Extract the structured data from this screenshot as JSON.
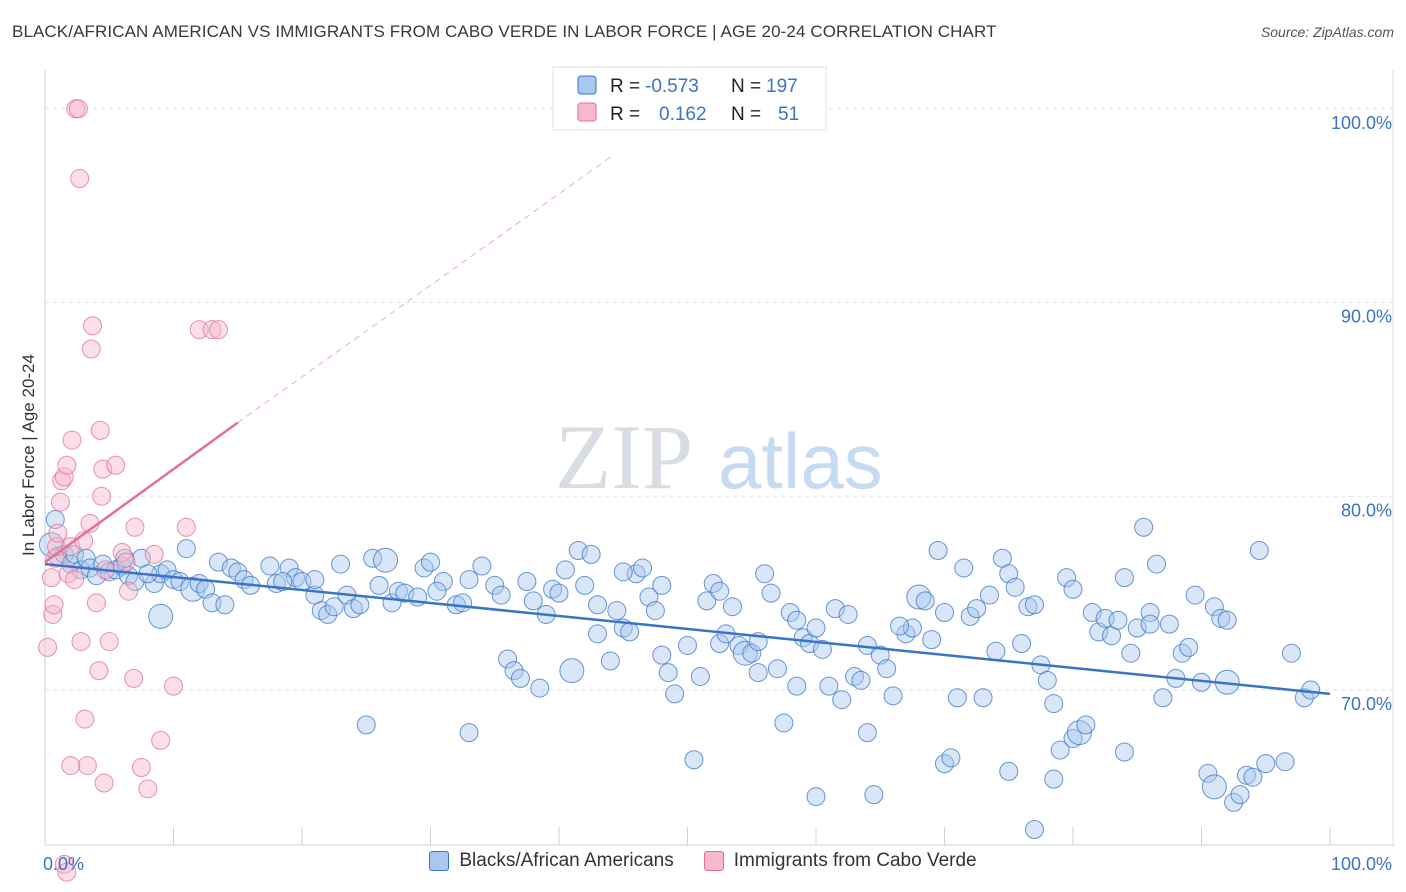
{
  "title": "BLACK/AFRICAN AMERICAN VS IMMIGRANTS FROM CABO VERDE IN LABOR FORCE | AGE 20-24 CORRELATION CHART",
  "source": "Source: ZipAtlas.com",
  "watermark": {
    "zip": "ZIP",
    "atlas": "atlas"
  },
  "colors": {
    "blue": "#3a74c4",
    "blue_fill": "#a9c8f0",
    "pink": "#e26f96",
    "pink_fill": "#f7b8cc",
    "grid": "#dde3ea"
  },
  "legend": {
    "series": [
      {
        "r_label": "R =",
        "r_value": "-0.573",
        "n_label": "N =",
        "n_value": "197",
        "color": "blue"
      },
      {
        "r_label": "R =",
        "r_value": "0.162",
        "n_label": "N =",
        "n_value": "51",
        "color": "pink"
      }
    ]
  },
  "bottom_legend": [
    "Blacks/African Americans",
    "Immigrants from Cabo Verde"
  ],
  "chart_data": {
    "type": "scatter",
    "xlabel": "",
    "ylabel": "In Labor Force | Age 20-24",
    "xlim": [
      0,
      100
    ],
    "ylim": [
      62,
      102
    ],
    "x_tick_labels": [
      "0.0%",
      "100.0%"
    ],
    "y_ticks": [
      70,
      80,
      90,
      100
    ],
    "y_tick_labels": [
      "70.0%",
      "80.0%",
      "90.0%",
      "100.0%"
    ],
    "grid": true,
    "legend_placement": "top-center",
    "series": [
      {
        "name": "Blacks/African Americans",
        "color": "blue",
        "trend": {
          "x": [
            0,
            100
          ],
          "y": [
            76.5,
            69.8
          ]
        },
        "points": [
          [
            0.5,
            77.5
          ],
          [
            0.8,
            78.8
          ],
          [
            1,
            76.9
          ],
          [
            1.5,
            77
          ],
          [
            2,
            76.5
          ],
          [
            2.3,
            77
          ],
          [
            2.8,
            76.2
          ],
          [
            3.2,
            76.8
          ],
          [
            3.5,
            76.3
          ],
          [
            4,
            75.9
          ],
          [
            4.5,
            76.5
          ],
          [
            5,
            76.1
          ],
          [
            5.5,
            76.2
          ],
          [
            6,
            76.4
          ],
          [
            6.5,
            75.9
          ],
          [
            7,
            75.6
          ],
          [
            7.5,
            76.8
          ],
          [
            8.5,
            75.5
          ],
          [
            9,
            76
          ],
          [
            9.5,
            76.2
          ],
          [
            10,
            75.7
          ],
          [
            10.5,
            75.6
          ],
          [
            11,
            77.3
          ],
          [
            11.5,
            75.2
          ],
          [
            12,
            75.5
          ],
          [
            12.5,
            75.2
          ],
          [
            13,
            74.5
          ],
          [
            13.5,
            76.6
          ],
          [
            14.5,
            76.3
          ],
          [
            15,
            76.1
          ],
          [
            15.5,
            75.7
          ],
          [
            16,
            75.4
          ],
          [
            17.5,
            76.4
          ],
          [
            18,
            75.5
          ],
          [
            19,
            76.3
          ],
          [
            19.5,
            75.8
          ],
          [
            20,
            75.6
          ],
          [
            21,
            74.9
          ],
          [
            21.5,
            74.1
          ],
          [
            22,
            73.9
          ],
          [
            22.5,
            74.3
          ],
          [
            23,
            76.5
          ],
          [
            23.5,
            74.9
          ],
          [
            24,
            74.2
          ],
          [
            24.5,
            74.4
          ],
          [
            25.5,
            76.8
          ],
          [
            26.5,
            76.7
          ],
          [
            27,
            74.5
          ],
          [
            27.5,
            75.1
          ],
          [
            28,
            75
          ],
          [
            29,
            74.8
          ],
          [
            29.5,
            76.3
          ],
          [
            30,
            76.6
          ],
          [
            31,
            75.6
          ],
          [
            32,
            74.4
          ],
          [
            32.5,
            74.5
          ],
          [
            33,
            75.7
          ],
          [
            34,
            76.4
          ],
          [
            35,
            75.4
          ],
          [
            35.5,
            74.9
          ],
          [
            36,
            71.6
          ],
          [
            36.5,
            71
          ],
          [
            37,
            70.6
          ],
          [
            38,
            74.6
          ],
          [
            38.5,
            70.1
          ],
          [
            39,
            73.9
          ],
          [
            39.5,
            75.2
          ],
          [
            40,
            75
          ],
          [
            40.5,
            76.2
          ],
          [
            41,
            71
          ],
          [
            41.5,
            77.2
          ],
          [
            42.5,
            77
          ],
          [
            43,
            74.4
          ],
          [
            44,
            71.5
          ],
          [
            44.5,
            74.1
          ],
          [
            45,
            73.2
          ],
          [
            45.5,
            73
          ],
          [
            46,
            76
          ],
          [
            46.5,
            76.3
          ],
          [
            47,
            74.8
          ],
          [
            47.5,
            74.1
          ],
          [
            48,
            71.8
          ],
          [
            48.5,
            70.9
          ],
          [
            49,
            69.8
          ],
          [
            50,
            72.3
          ],
          [
            51,
            70.7
          ],
          [
            51.5,
            74.6
          ],
          [
            52,
            75.5
          ],
          [
            52.5,
            72.4
          ],
          [
            53,
            72.9
          ],
          [
            53.5,
            74.3
          ],
          [
            54,
            72.3
          ],
          [
            54.5,
            71.9
          ],
          [
            55,
            71.9
          ],
          [
            55.5,
            72.5
          ],
          [
            56,
            76
          ],
          [
            56.5,
            75
          ],
          [
            57,
            71.1
          ],
          [
            57.5,
            68.3
          ],
          [
            58,
            74
          ],
          [
            59,
            72.7
          ],
          [
            59.5,
            72.4
          ],
          [
            60,
            73.2
          ],
          [
            60.5,
            72.1
          ],
          [
            61,
            70.2
          ],
          [
            61.5,
            74.2
          ],
          [
            62,
            69.5
          ],
          [
            63,
            70.7
          ],
          [
            63.5,
            70.5
          ],
          [
            64,
            72.3
          ],
          [
            65,
            71.8
          ],
          [
            65.5,
            71.1
          ],
          [
            66,
            69.7
          ],
          [
            67,
            72.9
          ],
          [
            67.5,
            73.2
          ],
          [
            68,
            74.8
          ],
          [
            68.5,
            74.6
          ],
          [
            69,
            72.6
          ],
          [
            69.5,
            77.2
          ],
          [
            70,
            74
          ],
          [
            71,
            69.6
          ],
          [
            71.5,
            76.3
          ],
          [
            72,
            73.8
          ],
          [
            72.5,
            74.2
          ],
          [
            73,
            69.6
          ],
          [
            74,
            72
          ],
          [
            74.5,
            76.8
          ],
          [
            75,
            76
          ],
          [
            75.5,
            75.3
          ],
          [
            76,
            72.4
          ],
          [
            76.5,
            74.3
          ],
          [
            77,
            74.4
          ],
          [
            77.5,
            71.3
          ],
          [
            78,
            70.5
          ],
          [
            78.5,
            69.3
          ],
          [
            79,
            66.9
          ],
          [
            79.5,
            75.8
          ],
          [
            80,
            67.5
          ],
          [
            80.5,
            67.8
          ],
          [
            81,
            68.2
          ],
          [
            81.5,
            74
          ],
          [
            82,
            73
          ],
          [
            82.5,
            73.7
          ],
          [
            83,
            72.8
          ],
          [
            83.5,
            73.6
          ],
          [
            84,
            75.8
          ],
          [
            84.5,
            71.9
          ],
          [
            85,
            73.2
          ],
          [
            85.5,
            78.4
          ],
          [
            86,
            74
          ],
          [
            86.5,
            76.5
          ],
          [
            87,
            69.6
          ],
          [
            87.5,
            73.4
          ],
          [
            88,
            70.6
          ],
          [
            88.5,
            71.9
          ],
          [
            89,
            72.2
          ],
          [
            89.5,
            74.9
          ],
          [
            90,
            70.4
          ],
          [
            90.5,
            65.7
          ],
          [
            91,
            74.3
          ],
          [
            91.5,
            73.7
          ],
          [
            92,
            70.4
          ],
          [
            92.5,
            64.2
          ],
          [
            93,
            64.6
          ],
          [
            93.5,
            65.6
          ],
          [
            94,
            65.5
          ],
          [
            94.5,
            77.2
          ],
          [
            95,
            66.2
          ],
          [
            98,
            69.6
          ],
          [
            98.5,
            70
          ],
          [
            14,
            74.4
          ],
          [
            25,
            68.2
          ],
          [
            33,
            67.8
          ],
          [
            43,
            72.9
          ],
          [
            50.5,
            66.4
          ],
          [
            60,
            64.5
          ],
          [
            64,
            67.8
          ],
          [
            64.5,
            64.6
          ],
          [
            70,
            66.2
          ],
          [
            70.5,
            66.5
          ],
          [
            75,
            65.8
          ],
          [
            77,
            62.8
          ],
          [
            78.5,
            65.4
          ],
          [
            84,
            66.8
          ],
          [
            91,
            65
          ],
          [
            96.5,
            66.3
          ],
          [
            6.2,
            76.8
          ],
          [
            8,
            76
          ],
          [
            18.5,
            75.6
          ],
          [
            26,
            75.4
          ],
          [
            30.5,
            75.1
          ],
          [
            37.5,
            75.6
          ],
          [
            42,
            75.4
          ],
          [
            45,
            76.1
          ],
          [
            48,
            75.4
          ],
          [
            52.5,
            75.1
          ],
          [
            58.5,
            73.6
          ],
          [
            62.5,
            73.9
          ],
          [
            66.5,
            73.3
          ],
          [
            73.5,
            74.9
          ],
          [
            80,
            75.2
          ],
          [
            86,
            73.4
          ],
          [
            92,
            73.6
          ],
          [
            97,
            71.9
          ],
          [
            55.5,
            70.9
          ],
          [
            58.5,
            70.2
          ],
          [
            21,
            75.7
          ],
          [
            9,
            73.8
          ]
        ]
      },
      {
        "name": "Immigrants from Cabo Verde",
        "color": "pink",
        "trend": {
          "x": [
            0,
            15
          ],
          "y": [
            76.6,
            83.8
          ]
        },
        "trend_ext": {
          "x": [
            15,
            44
          ],
          "y": [
            83.8,
            97.5
          ]
        },
        "points": [
          [
            0.2,
            72.2
          ],
          [
            0.5,
            75.8
          ],
          [
            0.6,
            73.9
          ],
          [
            0.7,
            74.4
          ],
          [
            0.8,
            76.8
          ],
          [
            0.9,
            77.4
          ],
          [
            1,
            78.1
          ],
          [
            1.2,
            79.7
          ],
          [
            1.3,
            80.8
          ],
          [
            1.5,
            81
          ],
          [
            1.7,
            81.6
          ],
          [
            1.8,
            76
          ],
          [
            2,
            77.4
          ],
          [
            2.1,
            82.9
          ],
          [
            2.3,
            75.7
          ],
          [
            2.4,
            100
          ],
          [
            2.6,
            100
          ],
          [
            2.7,
            96.4
          ],
          [
            2.8,
            72.5
          ],
          [
            3,
            77.7
          ],
          [
            3.1,
            68.5
          ],
          [
            3.3,
            66.1
          ],
          [
            3.5,
            78.6
          ],
          [
            3.6,
            87.6
          ],
          [
            3.7,
            88.8
          ],
          [
            4,
            74.5
          ],
          [
            4.2,
            71
          ],
          [
            4.3,
            83.4
          ],
          [
            4.4,
            80
          ],
          [
            4.5,
            81.4
          ],
          [
            4.7,
            76.2
          ],
          [
            5,
            72.5
          ],
          [
            5.5,
            81.6
          ],
          [
            6,
            77.1
          ],
          [
            6.3,
            76.6
          ],
          [
            6.5,
            75.1
          ],
          [
            7,
            78.4
          ],
          [
            7.5,
            66
          ],
          [
            8,
            64.9
          ],
          [
            8.5,
            77
          ],
          [
            9,
            67.4
          ],
          [
            10,
            70.2
          ],
          [
            11,
            78.4
          ],
          [
            12,
            88.6
          ],
          [
            13,
            88.6
          ],
          [
            13.5,
            88.6
          ],
          [
            1.5,
            61
          ],
          [
            1.7,
            60.6
          ],
          [
            2,
            66.1
          ],
          [
            4.6,
            65.2
          ],
          [
            6.9,
            70.6
          ]
        ]
      }
    ]
  }
}
